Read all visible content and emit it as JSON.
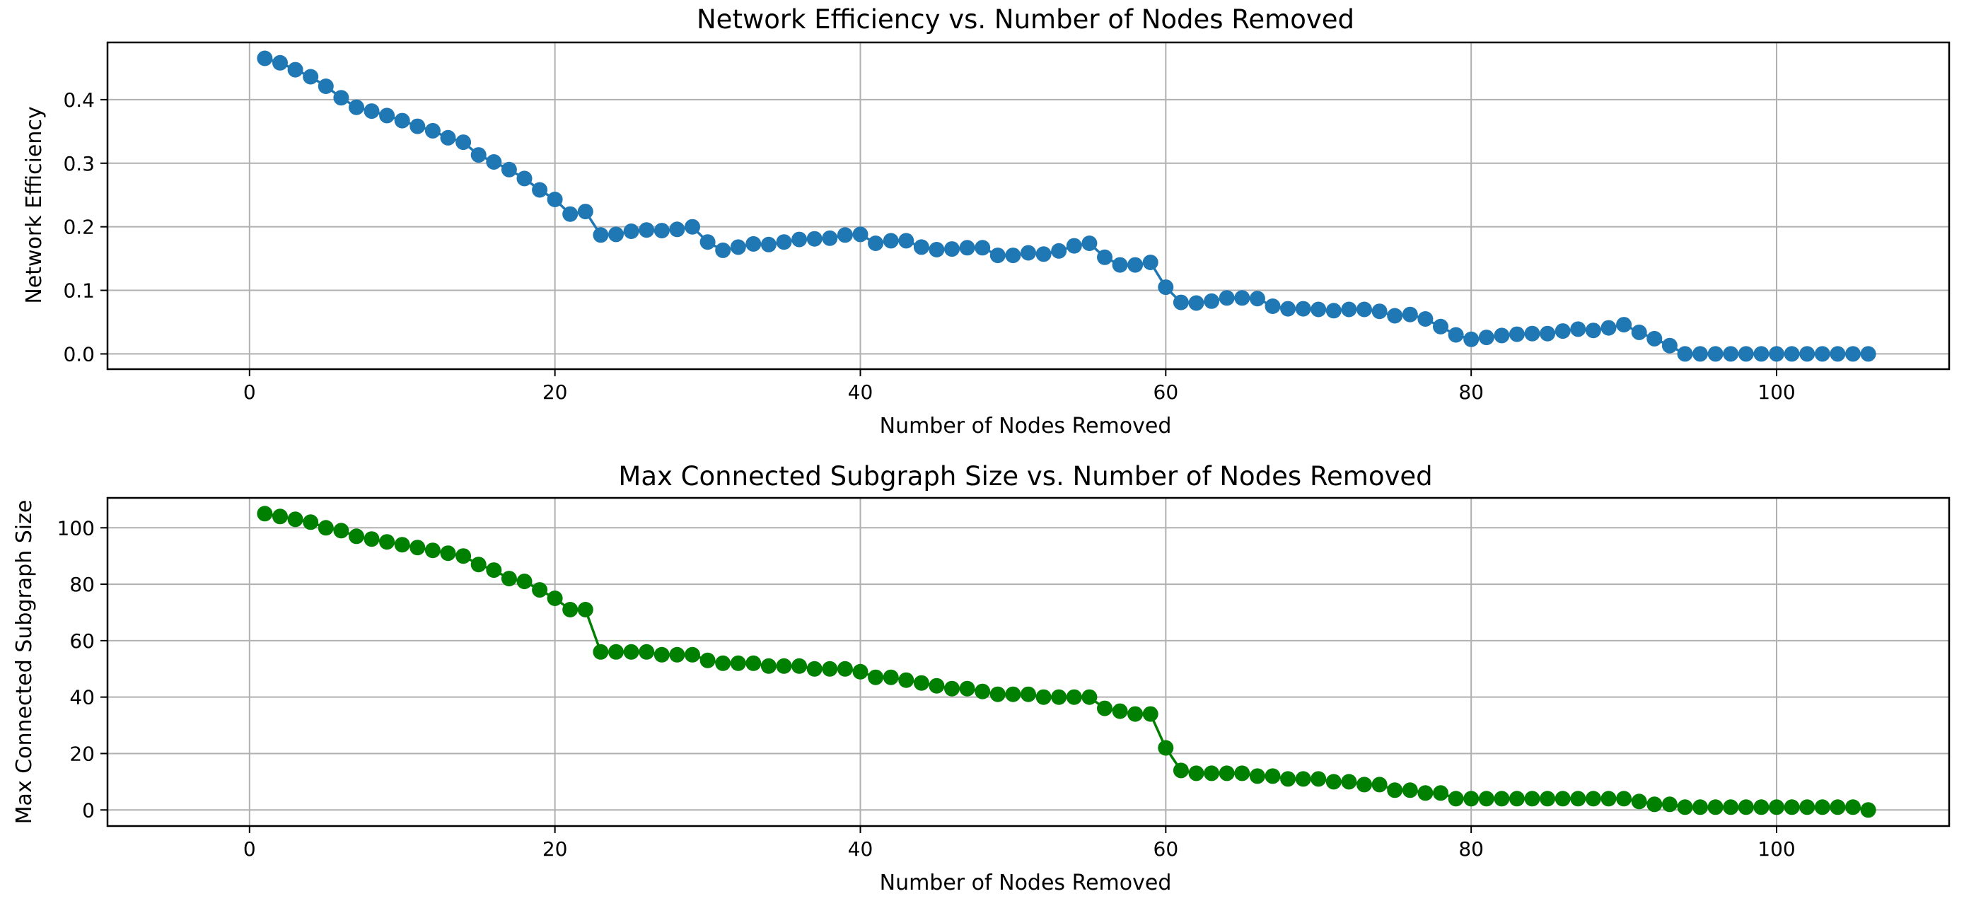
{
  "chart_data": [
    {
      "type": "line",
      "title": "Network Efficiency vs. Number of Nodes Removed",
      "xlabel": "Number of Nodes Removed",
      "ylabel": "Network Efficiency",
      "xlim": [
        -9.3,
        111.3
      ],
      "ylim": [
        -0.024,
        0.49
      ],
      "xticks": [
        0,
        20,
        40,
        60,
        80,
        100
      ],
      "yticks": [
        0.0,
        0.1,
        0.2,
        0.3,
        0.4
      ],
      "ytick_labels": [
        "0.0",
        "0.1",
        "0.2",
        "0.3",
        "0.4"
      ],
      "grid": true,
      "color": "#1f77b4",
      "marker": "circle",
      "x": [
        1,
        2,
        3,
        4,
        5,
        6,
        7,
        8,
        9,
        10,
        11,
        12,
        13,
        14,
        15,
        16,
        17,
        18,
        19,
        20,
        21,
        22,
        23,
        24,
        25,
        26,
        27,
        28,
        29,
        30,
        31,
        32,
        33,
        34,
        35,
        36,
        37,
        38,
        39,
        40,
        41,
        42,
        43,
        44,
        45,
        46,
        47,
        48,
        49,
        50,
        51,
        52,
        53,
        54,
        55,
        56,
        57,
        58,
        59,
        60,
        61,
        62,
        63,
        64,
        65,
        66,
        67,
        68,
        69,
        70,
        71,
        72,
        73,
        74,
        75,
        76,
        77,
        78,
        79,
        80,
        81,
        82,
        83,
        84,
        85,
        86,
        87,
        88,
        89,
        90,
        91,
        92,
        93,
        94,
        95,
        96,
        97,
        98,
        99,
        100,
        101,
        102,
        103,
        104,
        105,
        106
      ],
      "y": [
        0.465,
        0.458,
        0.447,
        0.436,
        0.421,
        0.403,
        0.388,
        0.382,
        0.375,
        0.367,
        0.358,
        0.351,
        0.34,
        0.333,
        0.313,
        0.302,
        0.29,
        0.276,
        0.258,
        0.243,
        0.22,
        0.224,
        0.187,
        0.188,
        0.193,
        0.195,
        0.194,
        0.196,
        0.2,
        0.176,
        0.163,
        0.168,
        0.173,
        0.172,
        0.176,
        0.18,
        0.181,
        0.182,
        0.187,
        0.188,
        0.174,
        0.178,
        0.178,
        0.168,
        0.164,
        0.165,
        0.167,
        0.167,
        0.155,
        0.155,
        0.159,
        0.157,
        0.162,
        0.17,
        0.174,
        0.152,
        0.14,
        0.14,
        0.144,
        0.105,
        0.081,
        0.08,
        0.083,
        0.088,
        0.088,
        0.087,
        0.075,
        0.071,
        0.071,
        0.07,
        0.068,
        0.07,
        0.07,
        0.067,
        0.06,
        0.062,
        0.055,
        0.043,
        0.03,
        0.023,
        0.026,
        0.029,
        0.031,
        0.032,
        0.032,
        0.036,
        0.039,
        0.037,
        0.041,
        0.046,
        0.034,
        0.024,
        0.013,
        0.0,
        0.0,
        0.0,
        0.0,
        0.0,
        0.0,
        0.0,
        0.0,
        0.0,
        0.0,
        0.0,
        0.0,
        0.0
      ]
    },
    {
      "type": "line",
      "title": "Max Connected Subgraph Size vs. Number of Nodes Removed",
      "xlabel": "Number of Nodes Removed",
      "ylabel": "Max Connected Subgraph Size",
      "xlim": [
        -9.3,
        111.3
      ],
      "ylim": [
        -5.7,
        110.6
      ],
      "xticks": [
        0,
        20,
        40,
        60,
        80,
        100
      ],
      "yticks": [
        0,
        20,
        40,
        60,
        80,
        100
      ],
      "ytick_labels": [
        "0",
        "20",
        "40",
        "60",
        "80",
        "100"
      ],
      "grid": true,
      "color": "#008000",
      "marker": "circle",
      "x": [
        1,
        2,
        3,
        4,
        5,
        6,
        7,
        8,
        9,
        10,
        11,
        12,
        13,
        14,
        15,
        16,
        17,
        18,
        19,
        20,
        21,
        22,
        23,
        24,
        25,
        26,
        27,
        28,
        29,
        30,
        31,
        32,
        33,
        34,
        35,
        36,
        37,
        38,
        39,
        40,
        41,
        42,
        43,
        44,
        45,
        46,
        47,
        48,
        49,
        50,
        51,
        52,
        53,
        54,
        55,
        56,
        57,
        58,
        59,
        60,
        61,
        62,
        63,
        64,
        65,
        66,
        67,
        68,
        69,
        70,
        71,
        72,
        73,
        74,
        75,
        76,
        77,
        78,
        79,
        80,
        81,
        82,
        83,
        84,
        85,
        86,
        87,
        88,
        89,
        90,
        91,
        92,
        93,
        94,
        95,
        96,
        97,
        98,
        99,
        100,
        101,
        102,
        103,
        104,
        105,
        106
      ],
      "y": [
        105,
        104,
        103,
        102,
        100,
        99,
        97,
        96,
        95,
        94,
        93,
        92,
        91,
        90,
        87,
        85,
        82,
        81,
        78,
        75,
        71,
        71,
        56,
        56,
        56,
        56,
        55,
        55,
        55,
        53,
        52,
        52,
        52,
        51,
        51,
        51,
        50,
        50,
        50,
        49,
        47,
        47,
        46,
        45,
        44,
        43,
        43,
        42,
        41,
        41,
        41,
        40,
        40,
        40,
        40,
        36,
        35,
        34,
        34,
        22,
        14,
        13,
        13,
        13,
        13,
        12,
        12,
        11,
        11,
        11,
        10,
        10,
        9,
        9,
        7,
        7,
        6,
        6,
        4,
        4,
        4,
        4,
        4,
        4,
        4,
        4,
        4,
        4,
        4,
        4,
        3,
        2,
        2,
        1,
        1,
        1,
        1,
        1,
        1,
        1,
        1,
        1,
        1,
        1,
        1,
        0
      ]
    }
  ]
}
